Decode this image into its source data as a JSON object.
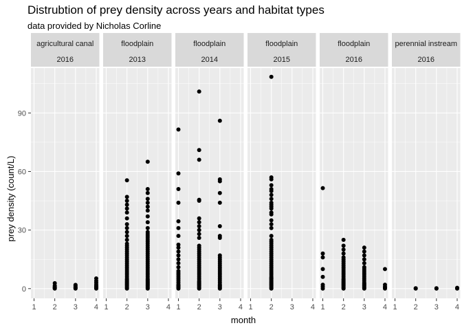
{
  "chart_data": {
    "type": "scatter",
    "title": "Distrubtion of prey density across years and habitat types",
    "subtitle": "data provided by Nicholas Corline",
    "xlabel": "month",
    "ylabel": "prey density (count/L)",
    "xlim": [
      1,
      4
    ],
    "ylim": [
      -5,
      113
    ],
    "xticks": [
      1,
      2,
      3,
      4
    ],
    "yticks": [
      0,
      30,
      60,
      90
    ],
    "grid": true,
    "point_color": "#000000",
    "panel_bg": "#ebebeb",
    "strip_bg": "#d9d9d9",
    "grid_color": "#ffffff",
    "facets": [
      {
        "habitat": "agricultural canal",
        "year": "2016",
        "points": [
          [
            2,
            0
          ],
          [
            2,
            0.3
          ],
          [
            2,
            0.6
          ],
          [
            2,
            1.0
          ],
          [
            2,
            1.5
          ],
          [
            2,
            2.8
          ],
          [
            3,
            0
          ],
          [
            3,
            0.3
          ],
          [
            3,
            0.6
          ],
          [
            3,
            1.0
          ],
          [
            3,
            1.5
          ],
          [
            3,
            1.9
          ],
          [
            4,
            0
          ],
          [
            4,
            0.4
          ],
          [
            4,
            0.8
          ],
          [
            4,
            1.3
          ],
          [
            4,
            2.0
          ],
          [
            4,
            3.0
          ],
          [
            4,
            4.0
          ],
          [
            4,
            5.2
          ]
        ]
      },
      {
        "habitat": "floodplain",
        "year": "2013",
        "points": [
          [
            2,
            0
          ],
          [
            2,
            0.5
          ],
          [
            2,
            1
          ],
          [
            2,
            1.5
          ],
          [
            2,
            2
          ],
          [
            2,
            2.5
          ],
          [
            2,
            3
          ],
          [
            2,
            3.5
          ],
          [
            2,
            4
          ],
          [
            2,
            4.5
          ],
          [
            2,
            5
          ],
          [
            2,
            6
          ],
          [
            2,
            7
          ],
          [
            2,
            8
          ],
          [
            2,
            9
          ],
          [
            2,
            10
          ],
          [
            2,
            11
          ],
          [
            2,
            12
          ],
          [
            2,
            13
          ],
          [
            2,
            14
          ],
          [
            2,
            15
          ],
          [
            2,
            16
          ],
          [
            2,
            17
          ],
          [
            2,
            18
          ],
          [
            2,
            19
          ],
          [
            2,
            20
          ],
          [
            2,
            21
          ],
          [
            2,
            22
          ],
          [
            2,
            23
          ],
          [
            2,
            25
          ],
          [
            2,
            27
          ],
          [
            2,
            29
          ],
          [
            2,
            31
          ],
          [
            2,
            33
          ],
          [
            2,
            36
          ],
          [
            2,
            39
          ],
          [
            2,
            41
          ],
          [
            2,
            43
          ],
          [
            2,
            45
          ],
          [
            2,
            47
          ],
          [
            2,
            55.5
          ],
          [
            3,
            0
          ],
          [
            3,
            0.5
          ],
          [
            3,
            1
          ],
          [
            3,
            1.5
          ],
          [
            3,
            2
          ],
          [
            3,
            2.5
          ],
          [
            3,
            3
          ],
          [
            3,
            3.5
          ],
          [
            3,
            4
          ],
          [
            3,
            4.5
          ],
          [
            3,
            5
          ],
          [
            3,
            6
          ],
          [
            3,
            7
          ],
          [
            3,
            8
          ],
          [
            3,
            9
          ],
          [
            3,
            10
          ],
          [
            3,
            11
          ],
          [
            3,
            12
          ],
          [
            3,
            13
          ],
          [
            3,
            14
          ],
          [
            3,
            15
          ],
          [
            3,
            16
          ],
          [
            3,
            17
          ],
          [
            3,
            18
          ],
          [
            3,
            19
          ],
          [
            3,
            20
          ],
          [
            3,
            21
          ],
          [
            3,
            22
          ],
          [
            3,
            23
          ],
          [
            3,
            24
          ],
          [
            3,
            25
          ],
          [
            3,
            26
          ],
          [
            3,
            27
          ],
          [
            3,
            28
          ],
          [
            3,
            29
          ],
          [
            3,
            31
          ],
          [
            3,
            34
          ],
          [
            3,
            37
          ],
          [
            3,
            40
          ],
          [
            3,
            42
          ],
          [
            3,
            44
          ],
          [
            3,
            46
          ],
          [
            3,
            49
          ],
          [
            3,
            51
          ],
          [
            3,
            65
          ]
        ]
      },
      {
        "habitat": "floodplain",
        "year": "2014",
        "points": [
          [
            1,
            0
          ],
          [
            1,
            0.5
          ],
          [
            1,
            1
          ],
          [
            1,
            1.5
          ],
          [
            1,
            2
          ],
          [
            1,
            3
          ],
          [
            1,
            4
          ],
          [
            1,
            5
          ],
          [
            1,
            6
          ],
          [
            1,
            7
          ],
          [
            1,
            8
          ],
          [
            1,
            9
          ],
          [
            1,
            11
          ],
          [
            1,
            13
          ],
          [
            1,
            15
          ],
          [
            1,
            17
          ],
          [
            1,
            19
          ],
          [
            1,
            21
          ],
          [
            1,
            22.5
          ],
          [
            1,
            27
          ],
          [
            1,
            31
          ],
          [
            1,
            34.5
          ],
          [
            1,
            44
          ],
          [
            1,
            51
          ],
          [
            1,
            59
          ],
          [
            1,
            81.5
          ],
          [
            2,
            0
          ],
          [
            2,
            0.5
          ],
          [
            2,
            1
          ],
          [
            2,
            1.5
          ],
          [
            2,
            2
          ],
          [
            2,
            2.5
          ],
          [
            2,
            3
          ],
          [
            2,
            3.5
          ],
          [
            2,
            4
          ],
          [
            2,
            5
          ],
          [
            2,
            6
          ],
          [
            2,
            7
          ],
          [
            2,
            8
          ],
          [
            2,
            9
          ],
          [
            2,
            10
          ],
          [
            2,
            11
          ],
          [
            2,
            12
          ],
          [
            2,
            13
          ],
          [
            2,
            14
          ],
          [
            2,
            15
          ],
          [
            2,
            16
          ],
          [
            2,
            17
          ],
          [
            2,
            18
          ],
          [
            2,
            19
          ],
          [
            2,
            20
          ],
          [
            2,
            21
          ],
          [
            2,
            22
          ],
          [
            2,
            26
          ],
          [
            2,
            28
          ],
          [
            2,
            30
          ],
          [
            2,
            32
          ],
          [
            2,
            34
          ],
          [
            2,
            36
          ],
          [
            2,
            45
          ],
          [
            2,
            45.5
          ],
          [
            2,
            66
          ],
          [
            2,
            71
          ],
          [
            2,
            101
          ],
          [
            3,
            0
          ],
          [
            3,
            0.5
          ],
          [
            3,
            1
          ],
          [
            3,
            1.5
          ],
          [
            3,
            2
          ],
          [
            3,
            3
          ],
          [
            3,
            4
          ],
          [
            3,
            5
          ],
          [
            3,
            6
          ],
          [
            3,
            7
          ],
          [
            3,
            8
          ],
          [
            3,
            9
          ],
          [
            3,
            10
          ],
          [
            3,
            11
          ],
          [
            3,
            12
          ],
          [
            3,
            13
          ],
          [
            3,
            14
          ],
          [
            3,
            15
          ],
          [
            3,
            16
          ],
          [
            3,
            17
          ],
          [
            3,
            26
          ],
          [
            3,
            27
          ],
          [
            3,
            32
          ],
          [
            3,
            44
          ],
          [
            3,
            49
          ],
          [
            3,
            55
          ],
          [
            3,
            56
          ],
          [
            3,
            86
          ]
        ]
      },
      {
        "habitat": "floodplain",
        "year": "2015",
        "points": [
          [
            2,
            0
          ],
          [
            2,
            0.5
          ],
          [
            2,
            1
          ],
          [
            2,
            1.5
          ],
          [
            2,
            2
          ],
          [
            2,
            2.5
          ],
          [
            2,
            3
          ],
          [
            2,
            3.5
          ],
          [
            2,
            4
          ],
          [
            2,
            4.5
          ],
          [
            2,
            5
          ],
          [
            2,
            5.5
          ],
          [
            2,
            6
          ],
          [
            2,
            7
          ],
          [
            2,
            8
          ],
          [
            2,
            9
          ],
          [
            2,
            10
          ],
          [
            2,
            11
          ],
          [
            2,
            12
          ],
          [
            2,
            13
          ],
          [
            2,
            14
          ],
          [
            2,
            15
          ],
          [
            2,
            16
          ],
          [
            2,
            17
          ],
          [
            2,
            18
          ],
          [
            2,
            19
          ],
          [
            2,
            20
          ],
          [
            2,
            21
          ],
          [
            2,
            22
          ],
          [
            2,
            23
          ],
          [
            2,
            24
          ],
          [
            2,
            25
          ],
          [
            2,
            27
          ],
          [
            2,
            31
          ],
          [
            2,
            33
          ],
          [
            2,
            35
          ],
          [
            2,
            38
          ],
          [
            2,
            39
          ],
          [
            2,
            41
          ],
          [
            2,
            42
          ],
          [
            2,
            43
          ],
          [
            2,
            44
          ],
          [
            2,
            46
          ],
          [
            2,
            48
          ],
          [
            2,
            50
          ],
          [
            2,
            51
          ],
          [
            2,
            53
          ],
          [
            2,
            56
          ],
          [
            2,
            57
          ],
          [
            2,
            108.5
          ]
        ]
      },
      {
        "habitat": "floodplain",
        "year": "2016",
        "points": [
          [
            1,
            0
          ],
          [
            1,
            1
          ],
          [
            1,
            2
          ],
          [
            1,
            6
          ],
          [
            1,
            10
          ],
          [
            1,
            16
          ],
          [
            1,
            18
          ],
          [
            1,
            51.5
          ],
          [
            2,
            0
          ],
          [
            2,
            0.5
          ],
          [
            2,
            1
          ],
          [
            2,
            1.5
          ],
          [
            2,
            2
          ],
          [
            2,
            2.5
          ],
          [
            2,
            3
          ],
          [
            2,
            3.5
          ],
          [
            2,
            4
          ],
          [
            2,
            4.5
          ],
          [
            2,
            5
          ],
          [
            2,
            6
          ],
          [
            2,
            7
          ],
          [
            2,
            8
          ],
          [
            2,
            9
          ],
          [
            2,
            10
          ],
          [
            2,
            11
          ],
          [
            2,
            12
          ],
          [
            2,
            13
          ],
          [
            2,
            14
          ],
          [
            2,
            15
          ],
          [
            2,
            16
          ],
          [
            2,
            18
          ],
          [
            2,
            20
          ],
          [
            2,
            22
          ],
          [
            2,
            25
          ],
          [
            3,
            0
          ],
          [
            3,
            0.5
          ],
          [
            3,
            1
          ],
          [
            3,
            1.5
          ],
          [
            3,
            2
          ],
          [
            3,
            2.5
          ],
          [
            3,
            3
          ],
          [
            3,
            4
          ],
          [
            3,
            5
          ],
          [
            3,
            6
          ],
          [
            3,
            7
          ],
          [
            3,
            8
          ],
          [
            3,
            9
          ],
          [
            3,
            10
          ],
          [
            3,
            11
          ],
          [
            3,
            13
          ],
          [
            3,
            15
          ],
          [
            3,
            17
          ],
          [
            3,
            19
          ],
          [
            3,
            21
          ],
          [
            4,
            0
          ],
          [
            4,
            0.5
          ],
          [
            4,
            1
          ],
          [
            4,
            2
          ],
          [
            4,
            10
          ]
        ]
      },
      {
        "habitat": "perennial instream",
        "year": "2016",
        "points": [
          [
            2,
            0
          ],
          [
            2,
            0.2
          ],
          [
            3,
            0
          ],
          [
            3,
            0.2
          ],
          [
            4,
            0
          ],
          [
            4,
            0.2
          ],
          [
            4,
            0.4
          ]
        ]
      }
    ]
  }
}
